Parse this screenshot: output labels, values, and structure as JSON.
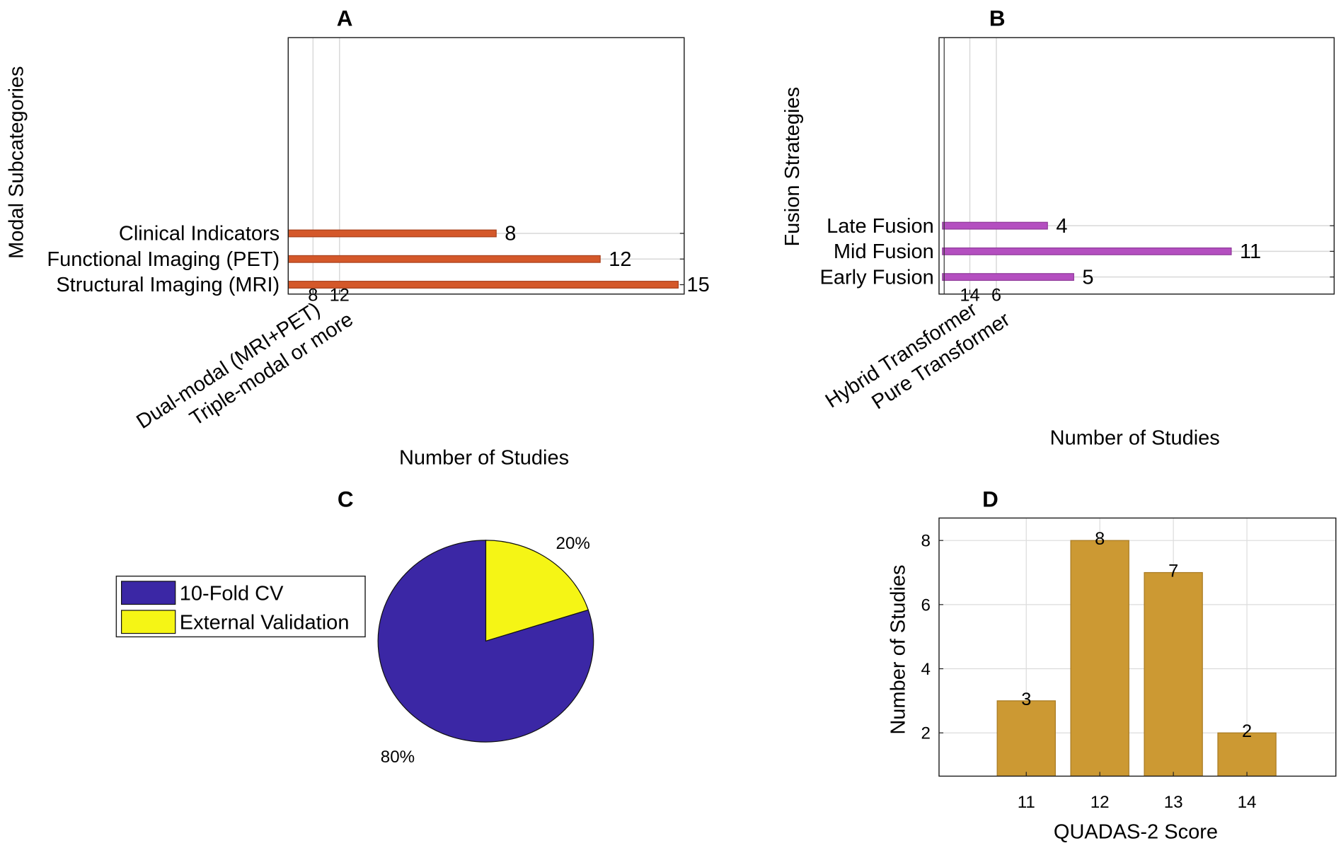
{
  "chart_data": [
    {
      "panel": "A",
      "type": "bar",
      "title": "A",
      "ylabel": "Modal Subcategories",
      "xlabel": "Number of Studies",
      "vertical_series": {
        "categories": [
          "Dual-modal (MRI+PET)",
          "Triple-modal or more"
        ],
        "values": [
          8,
          12
        ],
        "color": "#2e80d0"
      },
      "horizontal_series": {
        "categories": [
          "Clinical Indicators",
          "Functional Imaging (PET)",
          "Structural Imaging (MRI)"
        ],
        "values": [
          8,
          12,
          15
        ],
        "color": "#d4582a"
      }
    },
    {
      "panel": "B",
      "type": "bar",
      "title": "B",
      "ylabel": "Fusion Strategies",
      "xlabel": "Number of Studies",
      "vertical_series": {
        "categories": [
          "Hybrid Transformer",
          "Pure Transformer"
        ],
        "values": [
          14,
          6
        ],
        "color": "#4db34d"
      },
      "horizontal_series": {
        "categories": [
          "Late Fusion",
          "Mid Fusion",
          "Early Fusion"
        ],
        "values": [
          4,
          11,
          5
        ],
        "color": "#b44fc0"
      }
    },
    {
      "panel": "C",
      "type": "pie",
      "title": "C",
      "labels": [
        "10-Fold CV",
        "External Validation"
      ],
      "values": [
        80,
        20
      ],
      "percent_labels": [
        "80%",
        "20%"
      ],
      "colors": [
        "#3b27a5",
        "#f5f515"
      ],
      "legend": "left"
    },
    {
      "panel": "D",
      "type": "bar",
      "title": "D",
      "xlabel": "QUADAS-2 Score",
      "ylabel": "Number of Studies",
      "categories": [
        "11",
        "12",
        "13",
        "14"
      ],
      "values": [
        3,
        8,
        7,
        2
      ],
      "yticks": [
        2,
        4,
        6,
        8
      ],
      "ylim": [
        0.65,
        8.7
      ],
      "grid": true,
      "color": "#cc9933"
    }
  ]
}
